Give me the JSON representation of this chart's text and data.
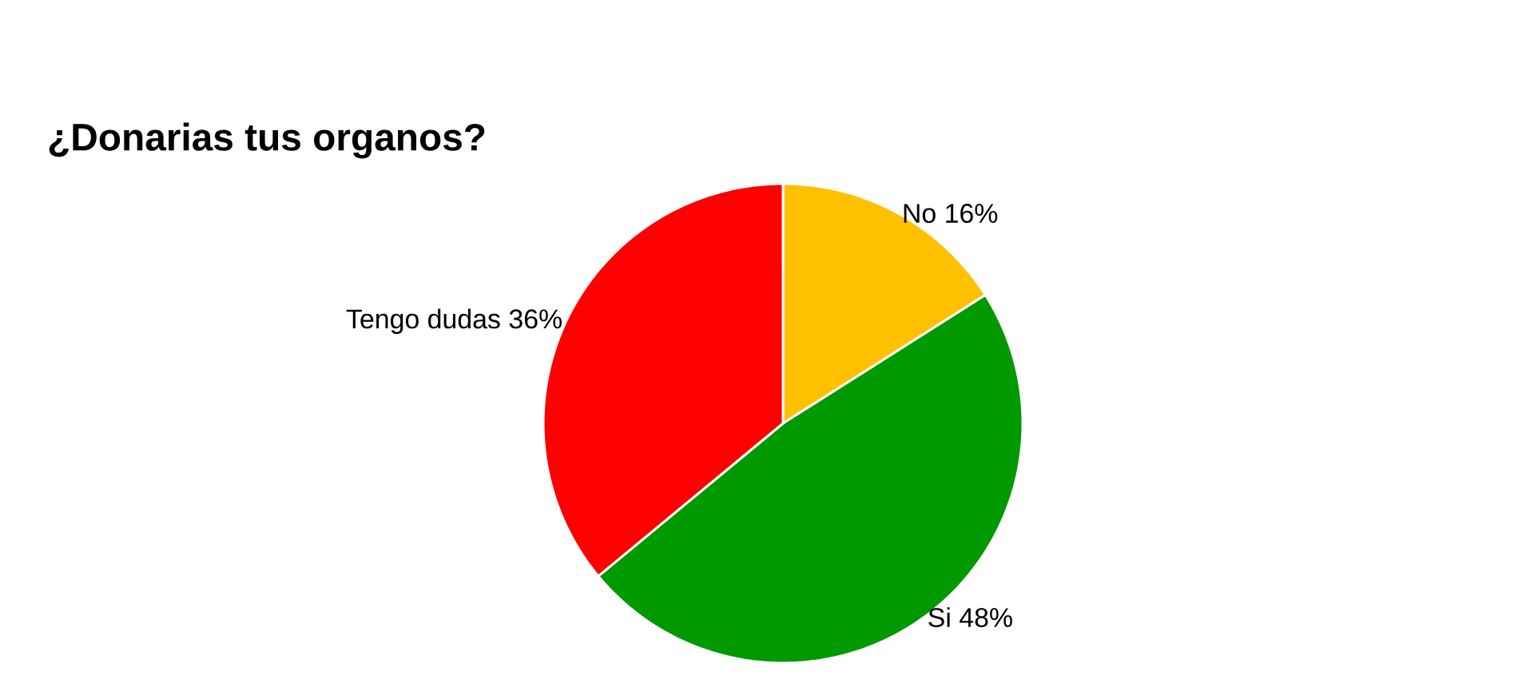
{
  "chart_data": {
    "type": "pie",
    "title": "¿Donarias tus organos?",
    "categories": [
      "No",
      "Si",
      "Tengo dudas"
    ],
    "values": [
      16,
      48,
      36
    ],
    "colors": [
      "#ffc000",
      "#009900",
      "#ff0000"
    ],
    "value_labels": [
      "16%",
      "48%",
      "36%"
    ]
  }
}
